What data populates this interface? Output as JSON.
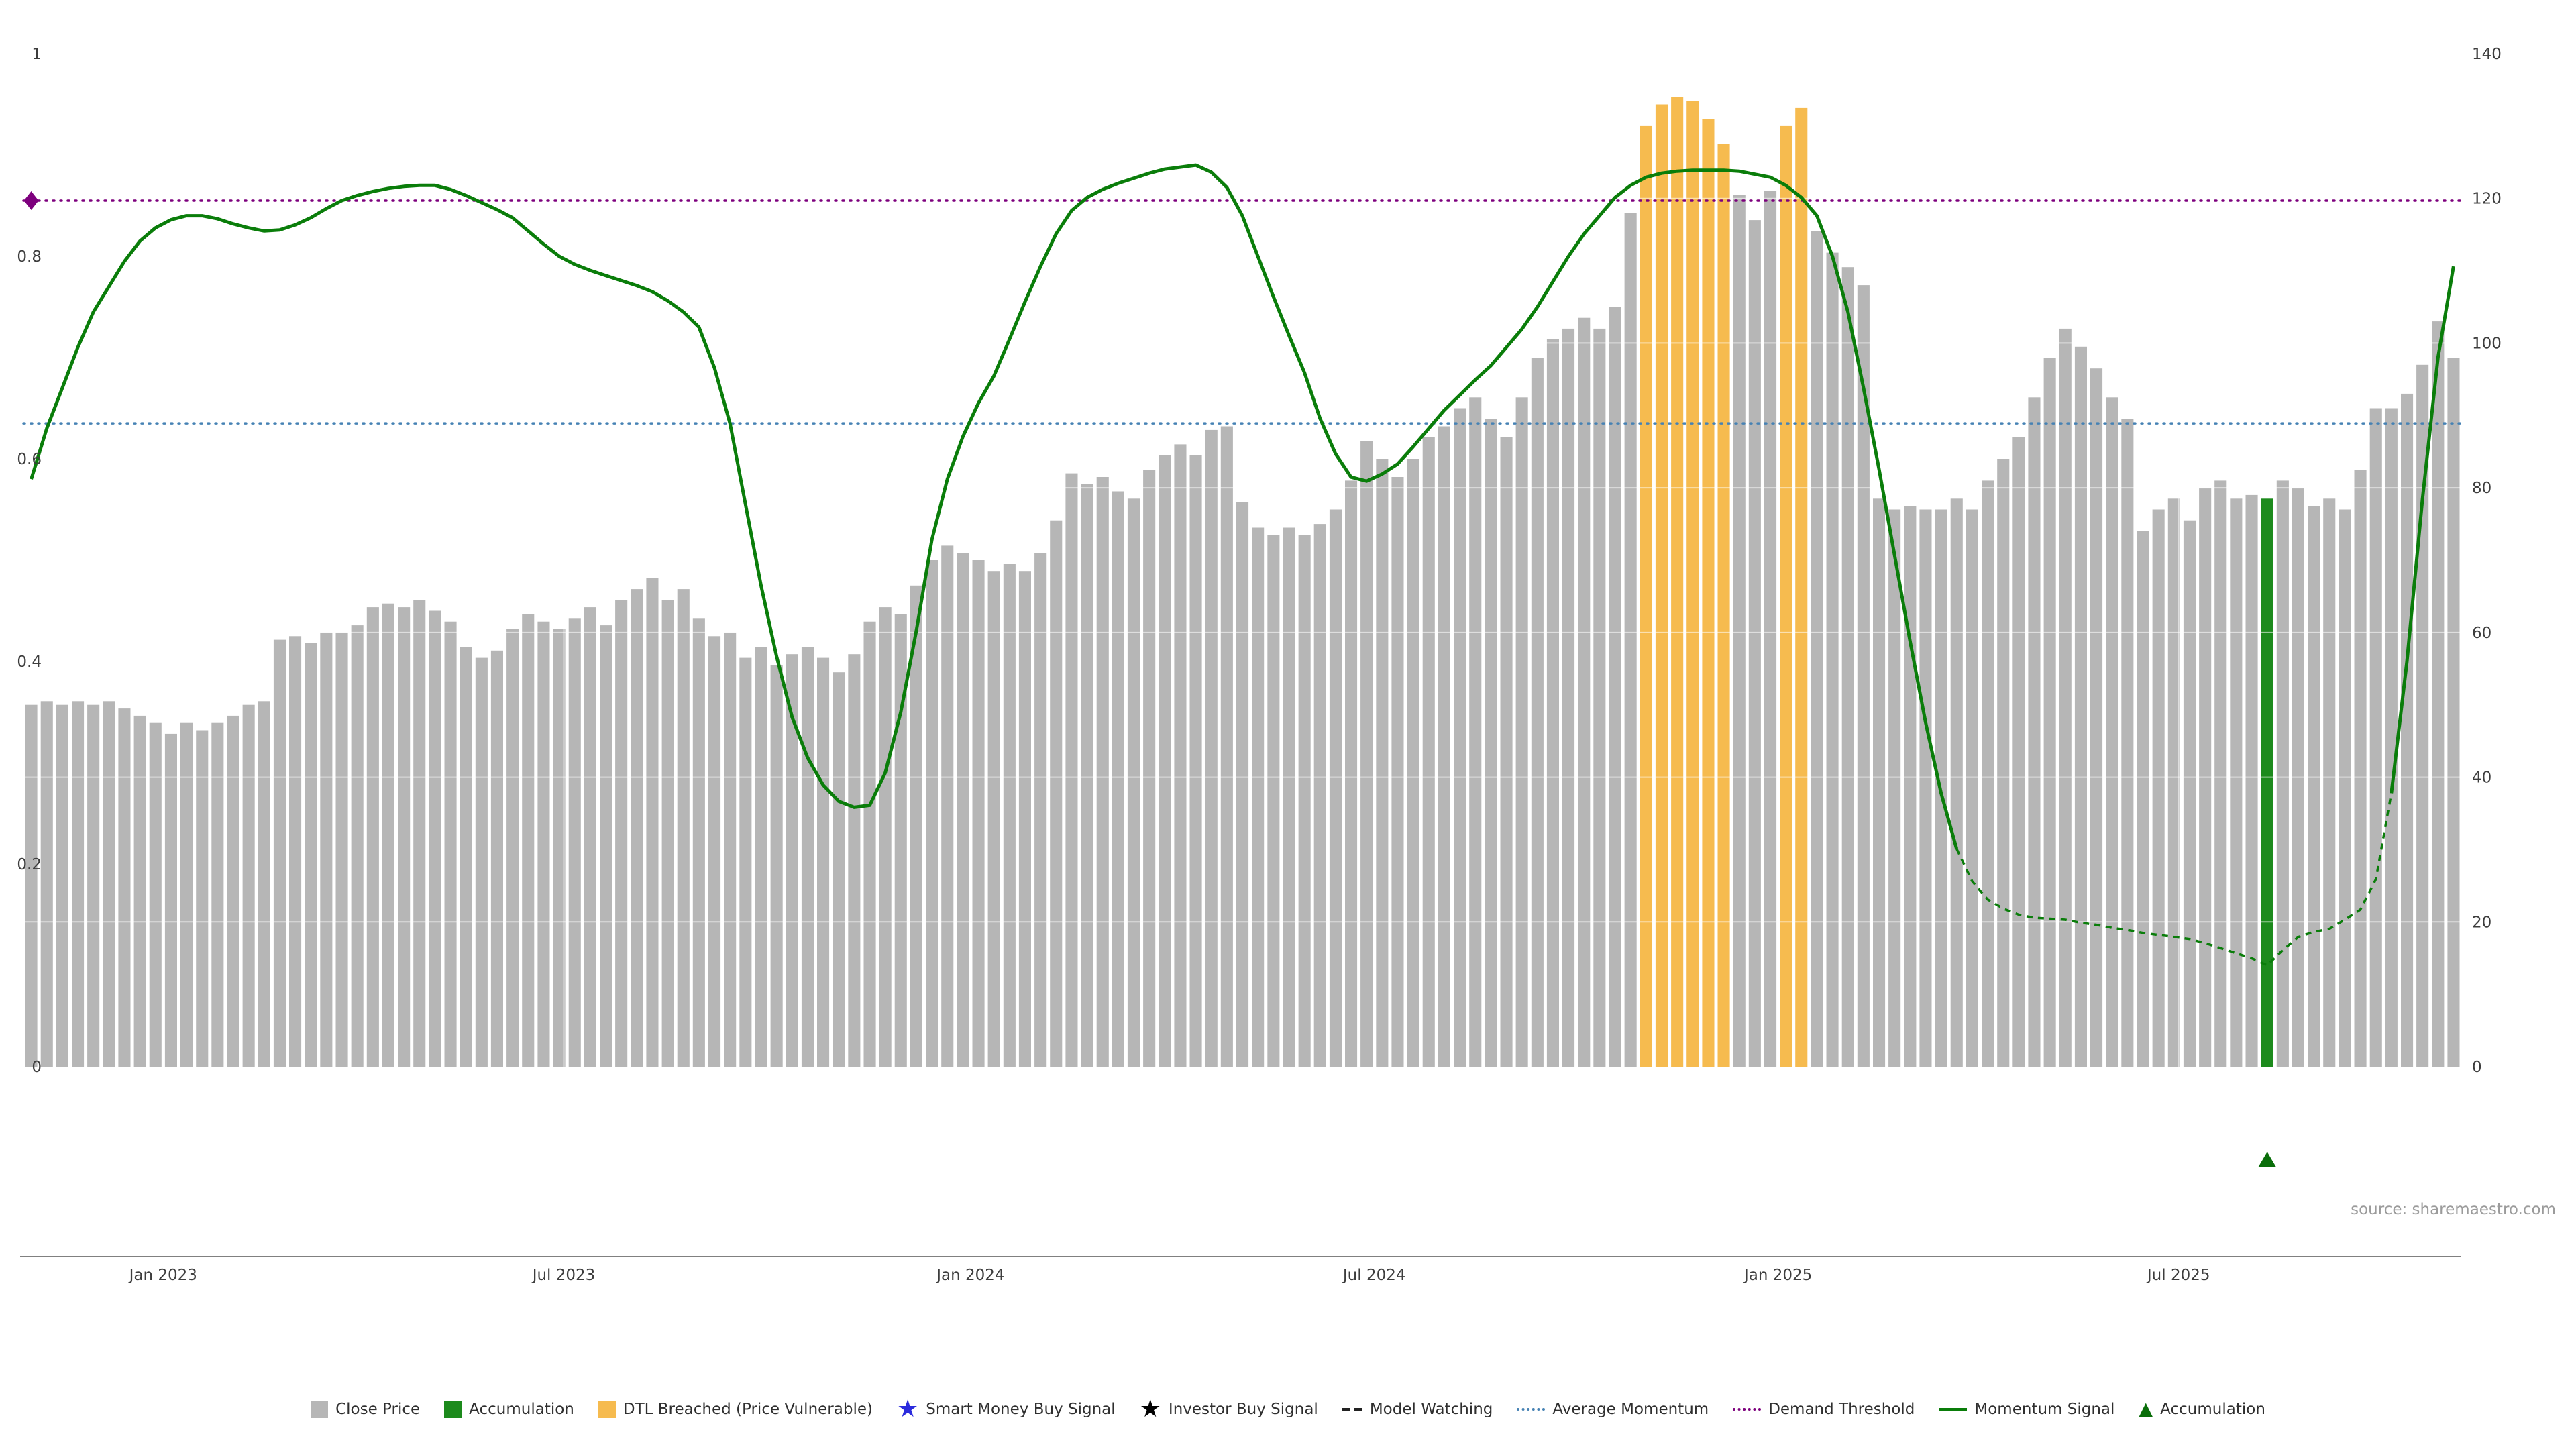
{
  "chart": {
    "source_note": "source: sharemaestro.com"
  },
  "chart_data": {
    "type": "bar",
    "title": "",
    "xlabel": "",
    "ylabel_left": "",
    "ylabel_right": "",
    "x_ticks": [
      {
        "label": "Jan 2023",
        "index": 8.5
      },
      {
        "label": "Jul 2023",
        "index": 34.3
      },
      {
        "label": "Jan 2024",
        "index": 60.5
      },
      {
        "label": "Jul 2024",
        "index": 86.5
      },
      {
        "label": "Jan 2025",
        "index": 112.5
      },
      {
        "label": "Jul 2025",
        "index": 138.3
      }
    ],
    "left_axis": {
      "ticks": [
        0,
        0.2,
        0.4,
        0.6,
        0.8,
        1
      ],
      "max": 1
    },
    "right_axis": {
      "ticks": [
        0,
        20,
        40,
        60,
        80,
        100,
        120,
        140
      ],
      "max": 140
    },
    "series": [
      {
        "name": "Close Price",
        "type": "bar",
        "axis": "right",
        "color": "#b6b6b6",
        "values": [
          50,
          50.5,
          50,
          50.5,
          50,
          50.5,
          49.5,
          48.5,
          47.5,
          46,
          47.5,
          46.5,
          47.5,
          48.5,
          50,
          50.5,
          59,
          59.5,
          58.5,
          60,
          60,
          61,
          63.5,
          64,
          63.5,
          64.5,
          63,
          61.5,
          58,
          56.5,
          57.5,
          60.5,
          62.5,
          61.5,
          60.5,
          62,
          63.5,
          61,
          64.5,
          66,
          67.5,
          64.5,
          66,
          62,
          59.5,
          60,
          56.5,
          58,
          55.5,
          57,
          58,
          56.5,
          54.5,
          57,
          61.5,
          63.5,
          62.5,
          66.5,
          70,
          72,
          71,
          70,
          68.5,
          69.5,
          68.5,
          71,
          75.5,
          82,
          80.5,
          81.5,
          79.5,
          78.5,
          82.5,
          84.5,
          86,
          84.5,
          88,
          88.5,
          78,
          74.5,
          73.5,
          74.5,
          73.5,
          75,
          77,
          81,
          86.5,
          84,
          81.5,
          84,
          87,
          88.5,
          91,
          92.5,
          89.5,
          87,
          92.5,
          98,
          100.5,
          102,
          103.5,
          102,
          105,
          118,
          130,
          133,
          134,
          133.5,
          131,
          127.5,
          120.5,
          117,
          121,
          130,
          132.5,
          115.5,
          112.5,
          110.5,
          108,
          78.5,
          77,
          77.5,
          77,
          77,
          78.5,
          77,
          81,
          84,
          87,
          92.5,
          98,
          102,
          99.5,
          96.5,
          92.5,
          89.5,
          74,
          77,
          78.5,
          75.5,
          80,
          81,
          78.5,
          79,
          78.5,
          81,
          80,
          77.5,
          78.5,
          77,
          82.5,
          91,
          91,
          93,
          97,
          103,
          98
        ]
      },
      {
        "name": "Momentum Signal",
        "type": "line",
        "axis": "left",
        "color": "#0a7d0a",
        "values": [
          0.58,
          0.63,
          0.67,
          0.71,
          0.745,
          0.77,
          0.795,
          0.815,
          0.828,
          0.836,
          0.84,
          0.84,
          0.837,
          0.832,
          0.828,
          0.825,
          0.826,
          0.831,
          0.838,
          0.847,
          0.855,
          0.86,
          0.864,
          0.867,
          0.869,
          0.87,
          0.87,
          0.866,
          0.86,
          0.853,
          0.846,
          0.838,
          0.825,
          0.812,
          0.8,
          0.792,
          0.786,
          0.781,
          0.776,
          0.771,
          0.765,
          0.756,
          0.745,
          0.73,
          0.69,
          0.635,
          0.555,
          0.475,
          0.405,
          0.345,
          0.305,
          0.278,
          0.262,
          0.256,
          0.258,
          0.29,
          0.35,
          0.43,
          0.52,
          0.58,
          0.622,
          0.655,
          0.682,
          0.718,
          0.755,
          0.79,
          0.822,
          0.845,
          0.858,
          0.866,
          0.872,
          0.877,
          0.882,
          0.886,
          0.888,
          0.89,
          0.883,
          0.868,
          0.84,
          0.8,
          0.76,
          0.722,
          0.685,
          0.64,
          0.605,
          0.582,
          0.578,
          0.585,
          0.595,
          0.612,
          0.63,
          0.648,
          0.663,
          0.678,
          0.692,
          0.71,
          0.728,
          0.75,
          0.775,
          0.8,
          0.822,
          0.84,
          0.858,
          0.87,
          0.878,
          0.882,
          0.884,
          0.885,
          0.885,
          0.885,
          0.884,
          0.881,
          0.878,
          0.87,
          0.858,
          0.84,
          0.8,
          0.745,
          0.67,
          0.59,
          0.505,
          0.42,
          0.34,
          0.27,
          0.215,
          0.183,
          0.165,
          0.156,
          0.15,
          0.147,
          0.146,
          0.145,
          0.142,
          0.14,
          0.137,
          0.135,
          0.132,
          0.13,
          0.128,
          0.126,
          0.122,
          0.117,
          0.112,
          0.107,
          0.1,
          0.115,
          0.128,
          0.133,
          0.136,
          0.145,
          0.155,
          0.185,
          0.27,
          0.4,
          0.56,
          0.7,
          0.79
        ]
      }
    ],
    "overlays": {
      "average_momentum": {
        "value": 0.635,
        "color": "#4682b4",
        "style": "dotted"
      },
      "demand_threshold": {
        "value": 0.855,
        "color": "#7d007d",
        "style": "dotted",
        "marker_shape": "diamond",
        "marker_index": 0
      },
      "dtl_breached_indices": [
        104,
        105,
        106,
        107,
        108,
        109,
        113,
        114
      ],
      "dtl_color": "#f6bb4f",
      "accumulation_bar_index": 144,
      "accumulation_bar_color": "#1c8a1c",
      "accumulation_marker": {
        "index": 144,
        "shape": "triangle-up",
        "color": "#0a6e0a"
      },
      "model_watching_dash_range": [
        124,
        152
      ],
      "grid": "on",
      "legend_position": "bottom-center"
    }
  },
  "legend": {
    "items": [
      {
        "id": "close-price",
        "label": "Close Price",
        "icon": "square",
        "color": "#b6b6b6"
      },
      {
        "id": "accumulation-bar",
        "label": "Accumulation",
        "icon": "square",
        "color": "#1c8a1c"
      },
      {
        "id": "dtl-breached",
        "label": "DTL Breached (Price Vulnerable)",
        "icon": "square",
        "color": "#f6bb4f"
      },
      {
        "id": "smart-money-buy-signal",
        "label": "Smart Money Buy Signal",
        "icon": "star",
        "color": "#2b2bdd"
      },
      {
        "id": "investor-buy-signal",
        "label": "Investor Buy Signal",
        "icon": "star",
        "color": "#000000"
      },
      {
        "id": "model-watching",
        "label": "Model Watching",
        "icon": "dashes",
        "color": "#222222"
      },
      {
        "id": "average-momentum",
        "label": "Average Momentum",
        "icon": "dotted-line",
        "color": "#4682b4"
      },
      {
        "id": "demand-threshold",
        "label": "Demand Threshold",
        "icon": "dotted-line",
        "color": "#7d007d"
      },
      {
        "id": "momentum-signal",
        "label": "Momentum Signal",
        "icon": "solid-line",
        "color": "#0a7d0a"
      },
      {
        "id": "accumulation-marker",
        "label": "Accumulation",
        "icon": "triangle",
        "color": "#0a6e0a"
      }
    ]
  }
}
